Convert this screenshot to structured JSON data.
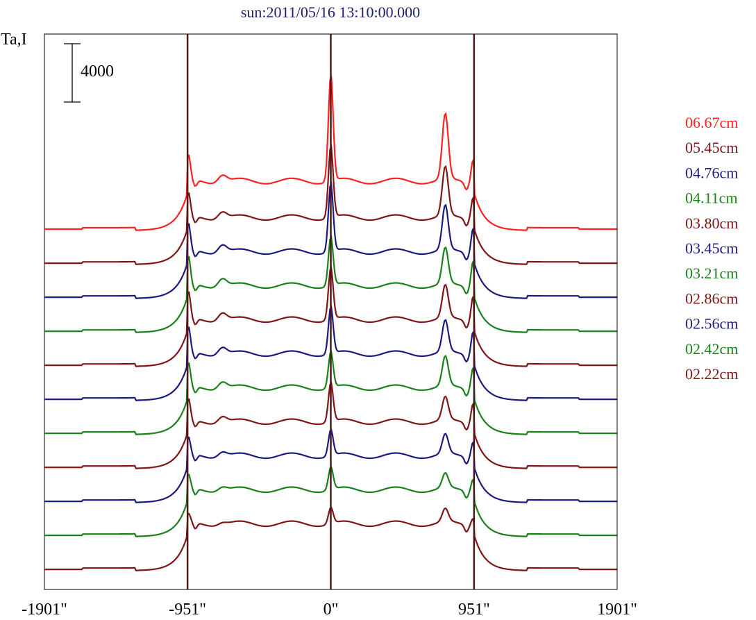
{
  "chart_data": {
    "type": "line",
    "title": "sun:2011/05/16 13:10:00.000",
    "ylabel": "Ta,I",
    "scale_bar_label": "4000",
    "xlim": [
      -1901,
      1901
    ],
    "x_ticks": [
      "-1901\"",
      "-951\"",
      "0\"",
      "951\"",
      "1901\""
    ],
    "markers": [
      -951,
      0,
      951
    ],
    "series": [
      {
        "name": "06.67cm",
        "color": "#ff2020",
        "peak": 1.55,
        "amp": 1.0,
        "limb": 0.35,
        "bump": 0.95
      },
      {
        "name": "05.45cm",
        "color": "#7f1515",
        "peak": 1.1,
        "amp": 0.95,
        "limb": 0.35,
        "bump": 0.75
      },
      {
        "name": "04.76cm",
        "color": "#1a1a80",
        "peak": 1.05,
        "amp": 0.95,
        "limb": 0.4,
        "bump": 0.68
      },
      {
        "name": "04.11cm",
        "color": "#1a801a",
        "peak": 0.75,
        "amp": 0.95,
        "limb": 0.42,
        "bump": 0.55
      },
      {
        "name": "03.80cm",
        "color": "#7f1515",
        "peak": 0.8,
        "amp": 0.95,
        "limb": 0.4,
        "bump": 0.5
      },
      {
        "name": "03.45cm",
        "color": "#1a1a80",
        "peak": 0.72,
        "amp": 0.95,
        "limb": 0.38,
        "bump": 0.48
      },
      {
        "name": "03.21cm",
        "color": "#1a801a",
        "peak": 0.55,
        "amp": 0.95,
        "limb": 0.35,
        "bump": 0.45
      },
      {
        "name": "02.86cm",
        "color": "#7f1515",
        "peak": 0.6,
        "amp": 0.95,
        "limb": 0.32,
        "bump": 0.35
      },
      {
        "name": "02.56cm",
        "color": "#1a1a80",
        "peak": 0.4,
        "amp": 0.95,
        "limb": 0.25,
        "bump": 0.3
      },
      {
        "name": "02.42cm",
        "color": "#1a801a",
        "peak": 0.35,
        "amp": 0.95,
        "limb": 0.2,
        "bump": 0.22
      },
      {
        "name": "02.22cm",
        "color": "#7f1515",
        "peak": 0.25,
        "amp": 0.95,
        "limb": 0.12,
        "bump": 0.2
      }
    ],
    "grid": false,
    "legend_position": "right"
  }
}
